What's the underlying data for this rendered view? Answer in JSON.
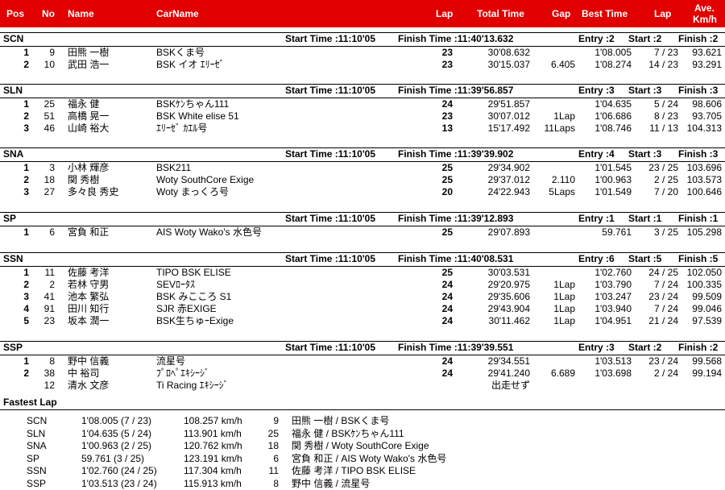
{
  "header": {
    "pos": "Pos",
    "no": "No",
    "name": "Name",
    "carname": "CarName",
    "lap": "Lap",
    "total": "Total Time",
    "gap": "Gap",
    "best": "Best Time",
    "lap2": "Lap",
    "ave1": "Ave.",
    "ave2": "Km/h"
  },
  "sections": [
    {
      "cls": "SCN",
      "start": "Start Time :11:10'05",
      "finish": "Finish Time :11:40'13.632",
      "entry": "Entry :2",
      "startc": "Start :2",
      "finishc": "Finish :2",
      "rows": [
        {
          "pos": "1",
          "no": "9",
          "name": "田熊 一樹",
          "car": "BSKくま号",
          "lap": "23",
          "total": "30'08.632",
          "gap": "",
          "best": "1'08.005",
          "bl": "7 / 23",
          "ave": "93.621"
        },
        {
          "pos": "2",
          "no": "10",
          "name": "武田 浩一",
          "car": "BSK イオ ｴﾘｰｾﾞ",
          "lap": "23",
          "total": "30'15.037",
          "gap": "6.405",
          "best": "1'08.274",
          "bl": "14 / 23",
          "ave": "93.291"
        }
      ]
    },
    {
      "cls": "SLN",
      "start": "Start Time :11:10'05",
      "finish": "Finish Time :11:39'56.857",
      "entry": "Entry :3",
      "startc": "Start :3",
      "finishc": "Finish :3",
      "rows": [
        {
          "pos": "1",
          "no": "25",
          "name": "福永 健",
          "car": "BSKｹﾝちゃん111",
          "lap": "24",
          "total": "29'51.857",
          "gap": "",
          "best": "1'04.635",
          "bl": "5 / 24",
          "ave": "98.606"
        },
        {
          "pos": "2",
          "no": "51",
          "name": "高橋 晃一",
          "car": "BSK White elise 51",
          "lap": "23",
          "total": "30'07.012",
          "gap": "1Lap",
          "best": "1'06.686",
          "bl": "8 / 23",
          "ave": "93.705"
        },
        {
          "pos": "3",
          "no": "46",
          "name": "山崎 裕大",
          "car": "ｴﾘｰｾﾞ ｶｴﾙ号",
          "lap": "13",
          "total": "15'17.492",
          "gap": "11Laps",
          "best": "1'08.746",
          "bl": "11 / 13",
          "ave": "104.313"
        }
      ]
    },
    {
      "cls": "SNA",
      "start": "Start Time :11:10'05",
      "finish": "Finish Time :11:39'39.902",
      "entry": "Entry :4",
      "startc": "Start :3",
      "finishc": "Finish :3",
      "rows": [
        {
          "pos": "1",
          "no": "3",
          "name": "小林 輝彦",
          "car": "BSK211",
          "lap": "25",
          "total": "29'34.902",
          "gap": "",
          "best": "1'01.545",
          "bl": "23 / 25",
          "ave": "103.696"
        },
        {
          "pos": "2",
          "no": "18",
          "name": "関 秀樹",
          "car": "Woty SouthCore Exige",
          "lap": "25",
          "total": "29'37.012",
          "gap": "2.110",
          "best": "1'00.963",
          "bl": "2 / 25",
          "ave": "103.573"
        },
        {
          "pos": "3",
          "no": "27",
          "name": "多々良 秀史",
          "car": "Woty まっくろ号",
          "lap": "20",
          "total": "24'22.943",
          "gap": "5Laps",
          "best": "1'01.549",
          "bl": "7 / 20",
          "ave": "100.646"
        }
      ]
    },
    {
      "cls": "SP",
      "start": "Start Time :11:10'05",
      "finish": "Finish Time :11:39'12.893",
      "entry": "Entry :1",
      "startc": "Start :1",
      "finishc": "Finish :1",
      "rows": [
        {
          "pos": "1",
          "no": "6",
          "name": "宮負 和正",
          "car": "AIS Woty Wako's 水色号",
          "lap": "25",
          "total": "29'07.893",
          "gap": "",
          "best": "59.761",
          "bl": "3 / 25",
          "ave": "105.298"
        }
      ]
    },
    {
      "cls": "SSN",
      "start": "Start Time :11:10'05",
      "finish": "Finish Time :11:40'08.531",
      "entry": "Entry :6",
      "startc": "Start :5",
      "finishc": "Finish :5",
      "rows": [
        {
          "pos": "1",
          "no": "11",
          "name": "佐藤 考洋",
          "car": "TIPO BSK ELISE",
          "lap": "25",
          "total": "30'03.531",
          "gap": "",
          "best": "1'02.760",
          "bl": "24 / 25",
          "ave": "102.050"
        },
        {
          "pos": "2",
          "no": "2",
          "name": "若林 守男",
          "car": "SEVﾛｰﾀｽ",
          "lap": "24",
          "total": "29'20.975",
          "gap": "1Lap",
          "best": "1'03.790",
          "bl": "7 / 24",
          "ave": "100.335"
        },
        {
          "pos": "3",
          "no": "41",
          "name": "池本 繁弘",
          "car": "BSK みこころ S1",
          "lap": "24",
          "total": "29'35.606",
          "gap": "1Lap",
          "best": "1'03.247",
          "bl": "23 / 24",
          "ave": "99.509"
        },
        {
          "pos": "4",
          "no": "91",
          "name": "田川 知行",
          "car": "SJR 赤EXIGE",
          "lap": "24",
          "total": "29'43.904",
          "gap": "1Lap",
          "best": "1'03.940",
          "bl": "7 / 24",
          "ave": "99.046"
        },
        {
          "pos": "5",
          "no": "23",
          "name": "坂本 潤一",
          "car": "BSK生ちゅｰExige",
          "lap": "24",
          "total": "30'11.462",
          "gap": "1Lap",
          "best": "1'04.951",
          "bl": "21 / 24",
          "ave": "97.539"
        }
      ]
    },
    {
      "cls": "SSP",
      "start": "Start Time :11:10'05",
      "finish": "Finish Time :11:39'39.551",
      "entry": "Entry :3",
      "startc": "Start :2",
      "finishc": "Finish :2",
      "rows": [
        {
          "pos": "1",
          "no": "8",
          "name": "野中 信義",
          "car": "流星号",
          "lap": "24",
          "total": "29'34.551",
          "gap": "",
          "best": "1'03.513",
          "bl": "23 / 24",
          "ave": "99.568"
        },
        {
          "pos": "2",
          "no": "38",
          "name": "中 裕司",
          "car": "ﾌﾟﾛﾍﾟｴｷｼｰｼﾞ",
          "lap": "24",
          "total": "29'41.240",
          "gap": "6.689",
          "best": "1'03.698",
          "bl": "2 / 24",
          "ave": "99.194"
        },
        {
          "pos": "",
          "no": "12",
          "name": "清水 文彦",
          "car": "Ti Racing ｴｷｼｰｼﾞ",
          "lap": "",
          "total": "出走せず",
          "gap": "",
          "best": "",
          "bl": "",
          "ave": ""
        }
      ]
    }
  ],
  "fastest": {
    "title": "Fastest Lap",
    "rows": [
      {
        "cls": "SCN",
        "time": "1'08.005 (7 / 23)",
        "speed": "108.257 km/h",
        "no": "9",
        "who": "田熊 一樹 / BSKくま号"
      },
      {
        "cls": "SLN",
        "time": "1'04.635 (5 / 24)",
        "speed": "113.901 km/h",
        "no": "25",
        "who": "福永 健 / BSKｹﾝちゃん111"
      },
      {
        "cls": "SNA",
        "time": "1'00.963 (2 / 25)",
        "speed": "120.762 km/h",
        "no": "18",
        "who": "関 秀樹 / Woty SouthCore Exige"
      },
      {
        "cls": "SP",
        "time": "59.761 (3 / 25)",
        "speed": "123.191 km/h",
        "no": "6",
        "who": "宮負 和正 / AIS Woty Wako's 水色号"
      },
      {
        "cls": "SSN",
        "time": "1'02.760 (24 / 25)",
        "speed": "117.304 km/h",
        "no": "11",
        "who": "佐藤 考洋 / TIPO BSK ELISE"
      },
      {
        "cls": "SSP",
        "time": "1'03.513 (23 / 24)",
        "speed": "115.913 km/h",
        "no": "8",
        "who": "野中 信義 / 流星号"
      }
    ]
  }
}
